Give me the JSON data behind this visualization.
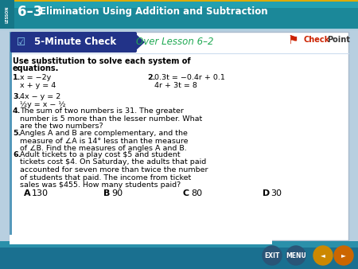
{
  "header_bg_top": "#1a7a8a",
  "header_bg_bottom": "#2a9aaa",
  "header_text": "Elimination Using Addition and Subtraction",
  "header_number": "6–3",
  "slide_bg": "#b8cfe0",
  "content_bg": "#ffffff",
  "banner_bg": "#3355aa",
  "banner_text": "5-Minute Check",
  "over_lesson_text": "Over Lesson 6–2",
  "over_lesson_color": "#22aa55",
  "checkpoint_red": "#cc0000",
  "main_instruction_line1": "Use substitution to solve each system of",
  "main_instruction_line2": "equations.",
  "bottom_nav_bg": "#1a5577",
  "nav_buttons": [
    "EXIT",
    "MENU",
    "◄",
    "►"
  ]
}
